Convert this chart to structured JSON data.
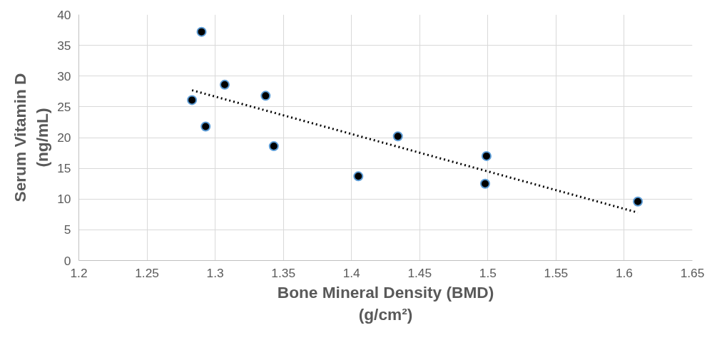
{
  "chart_data": {
    "type": "scatter",
    "xlabel": "Bone Mineral Density (BMD)\n(g/cm²)",
    "ylabel": "Serum Vitamin D\n(ng/mL)",
    "xlim": [
      1.2,
      1.65
    ],
    "xticks": [
      1.2,
      1.25,
      1.3,
      1.35,
      1.4,
      1.45,
      1.5,
      1.55,
      1.6,
      1.65
    ],
    "ylim": [
      0,
      40
    ],
    "yticks": [
      0,
      5,
      10,
      15,
      20,
      25,
      30,
      35,
      40
    ],
    "grid": true,
    "series": [
      {
        "marker": "circle",
        "color": "#000000",
        "x": [
          1.283,
          1.29,
          1.293,
          1.307,
          1.337,
          1.343,
          1.405,
          1.434,
          1.499,
          1.498,
          1.61
        ],
        "values": [
          26.1,
          37.2,
          21.8,
          28.6,
          26.8,
          18.6,
          13.7,
          20.2,
          17.0,
          12.5,
          9.6
        ]
      },
      {
        "type": "line",
        "color": "#000000",
        "line_style": "dotted",
        "x": [
          1.283,
          1.61
        ],
        "values": [
          27.7,
          7.8
        ]
      }
    ]
  }
}
